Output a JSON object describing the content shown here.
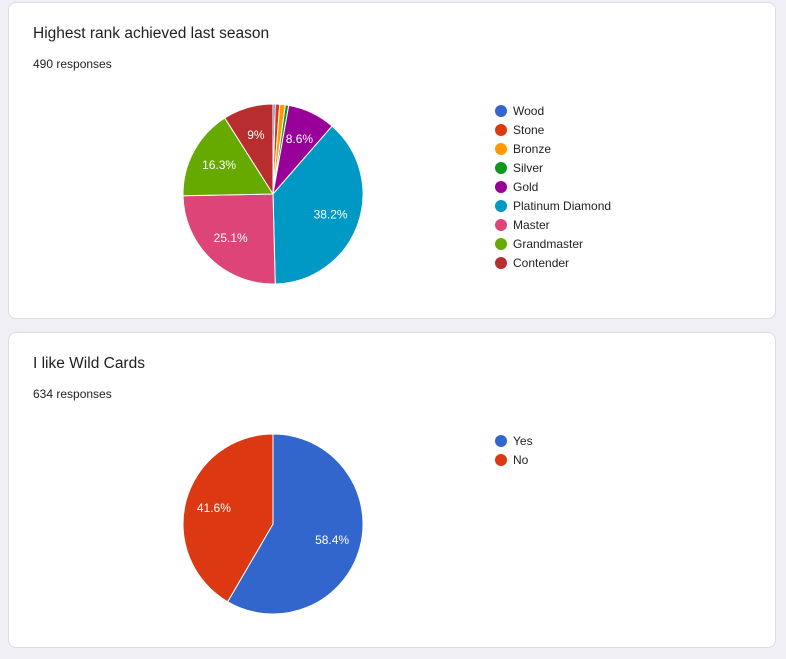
{
  "chart_data": [
    {
      "type": "pie",
      "title": "Highest rank achieved last season",
      "subtitle": "490 responses",
      "legend_position": "right",
      "categories": [
        "Wood",
        "Stone",
        "Bronze",
        "Silver",
        "Gold",
        "Platinum Diamond",
        "Master",
        "Grandmaster",
        "Contender"
      ],
      "values": [
        0.4,
        0.8,
        1.0,
        0.6,
        8.6,
        38.2,
        25.1,
        16.3,
        9.0
      ],
      "labels": [
        "",
        "",
        "",
        "",
        "8.6%",
        "38.2%",
        "25.1%",
        "16.3%",
        "9%"
      ],
      "colors": [
        "#3366cc",
        "#dc3912",
        "#ff9900",
        "#109618",
        "#990099",
        "#0099c6",
        "#dd4477",
        "#66aa00",
        "#b82e2e"
      ]
    },
    {
      "type": "pie",
      "title": "I like Wild Cards",
      "subtitle": "634 responses",
      "legend_position": "right",
      "categories": [
        "Yes",
        "No"
      ],
      "values": [
        58.4,
        41.6
      ],
      "labels": [
        "58.4%",
        "41.6%"
      ],
      "colors": [
        "#3366cc",
        "#dc3912"
      ]
    }
  ]
}
